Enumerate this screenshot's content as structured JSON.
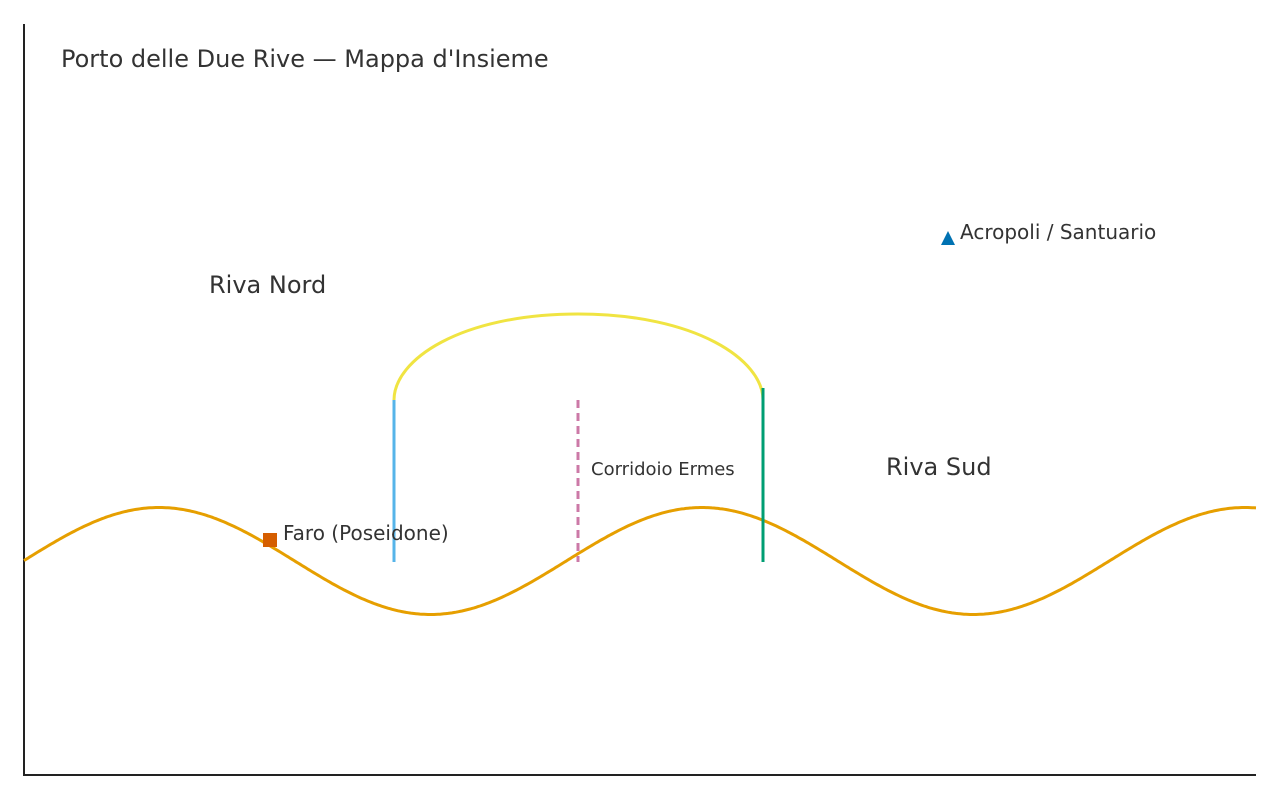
{
  "map": {
    "title": "Porto delle Due Rive — Mappa d'Insieme",
    "regions": {
      "north": "Riva Nord",
      "south": "Riva Sud"
    },
    "places": {
      "lighthouse": "Faro (Poseidone)",
      "acropolis": "Acropoli / Santuario",
      "corridor": "Corridoio Ermes"
    },
    "colors": {
      "shoreline": "#E69F00",
      "arch": "#F0E442",
      "west_pier": "#56B4E9",
      "east_pier": "#009E73",
      "corridor": "#CC79A7",
      "lighthouse_marker": "#D55E00",
      "acropolis_marker": "#0072B2"
    },
    "icons": {
      "lighthouse": "square-marker-icon",
      "acropolis": "triangle-marker-icon"
    }
  }
}
